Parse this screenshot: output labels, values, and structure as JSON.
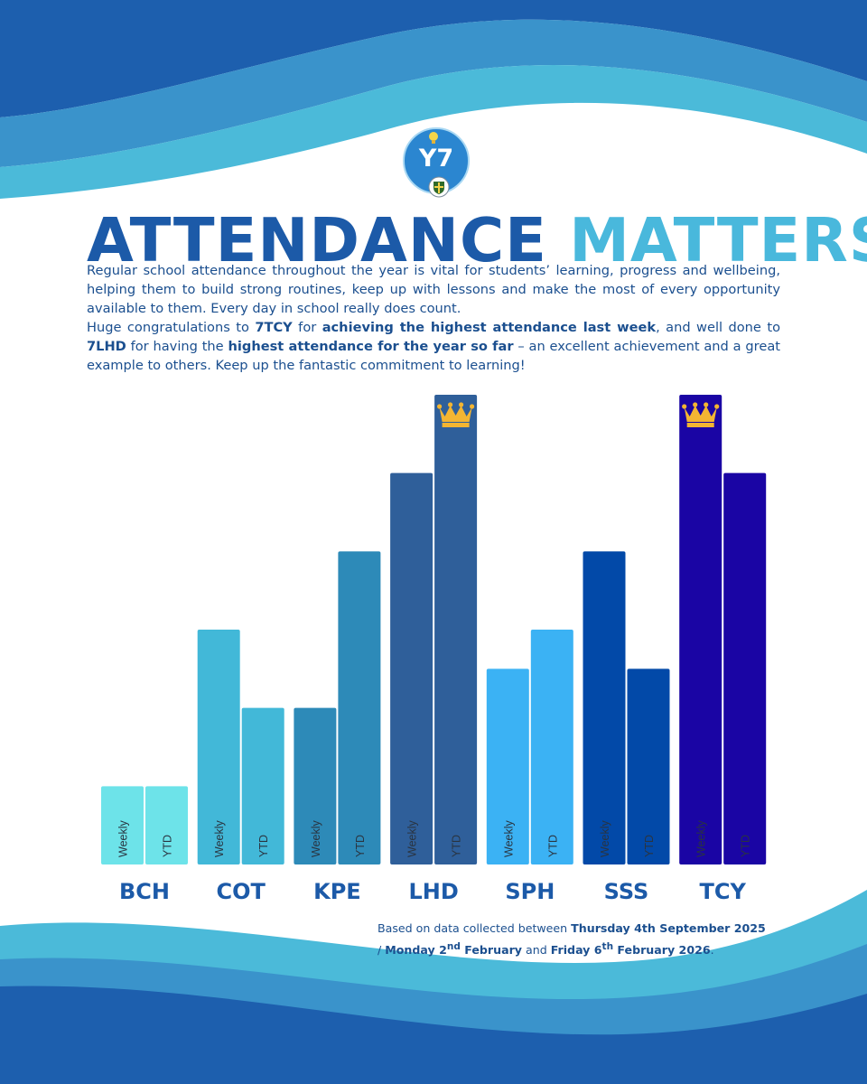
{
  "logo": {
    "text": "Y7",
    "icons": [
      "lightbulb-icon",
      "school-crest-icon"
    ]
  },
  "headline": {
    "part1": "ATTENDANCE",
    "part2": "MATTERS"
  },
  "intro": {
    "paragraph1": "Regular school attendance throughout the year is vital for students’ learning, progress and wellbeing, helping them to build strong routines, keep up with lessons and make the most of every opportunity available to them. Every day in school really does count.",
    "p2_a": "Huge congratulations to ",
    "p2_b": "7TCY",
    "p2_c": " for ",
    "p2_d": "achieving the highest attendance last week",
    "p2_e": ", and well done to ",
    "p2_f": "7LHD",
    "p2_g": " for having the ",
    "p2_h": "highest attendance for the year so far",
    "p2_i": " – an excellent achievement and a great example to others. Keep up the fantastic commitment to learning!"
  },
  "footnote": {
    "a": "Based on data collected between ",
    "b": "Thursday 4th September 2025",
    "c": " / ",
    "d1": "Monday 2",
    "d_sup": "nd",
    "d2": " February",
    "e": "  and ",
    "f1": "Friday 6",
    "f_sup": "th",
    "f2": " February 2026",
    "g": "."
  },
  "colors": {
    "title_dark": "#1c5aa8",
    "title_light": "#49b8dc",
    "text": "#1b4f8f",
    "crown": "#f3b532",
    "waves": [
      "#1d5fae",
      "#3a93cb",
      "#4bbad9"
    ]
  },
  "chart_data": {
    "type": "bar",
    "title": "",
    "xlabel": "",
    "ylabel": "",
    "grid": false,
    "legend": "none",
    "series_labels": [
      "Weekly",
      "YTD"
    ],
    "categories": [
      "BCH",
      "COT",
      "KPE",
      "LHD",
      "SPH",
      "SSS",
      "TCY"
    ],
    "colors": [
      "#6de3e9",
      "#42b8d8",
      "#2d8ab8",
      "#2f5f9a",
      "#3bb2f4",
      "#0249a8",
      "#1a05a4"
    ],
    "series": [
      {
        "name": "Weekly",
        "values": [
          1,
          3,
          2,
          5,
          2.5,
          4,
          6
        ]
      },
      {
        "name": "YTD",
        "values": [
          1,
          2,
          4,
          6,
          3,
          2.5,
          5
        ]
      }
    ],
    "ylim": [
      0,
      6
    ],
    "highlights": [
      {
        "category": "LHD",
        "series": "YTD",
        "marker": "crown-icon"
      },
      {
        "category": "TCY",
        "series": "Weekly",
        "marker": "crown-icon"
      }
    ]
  }
}
